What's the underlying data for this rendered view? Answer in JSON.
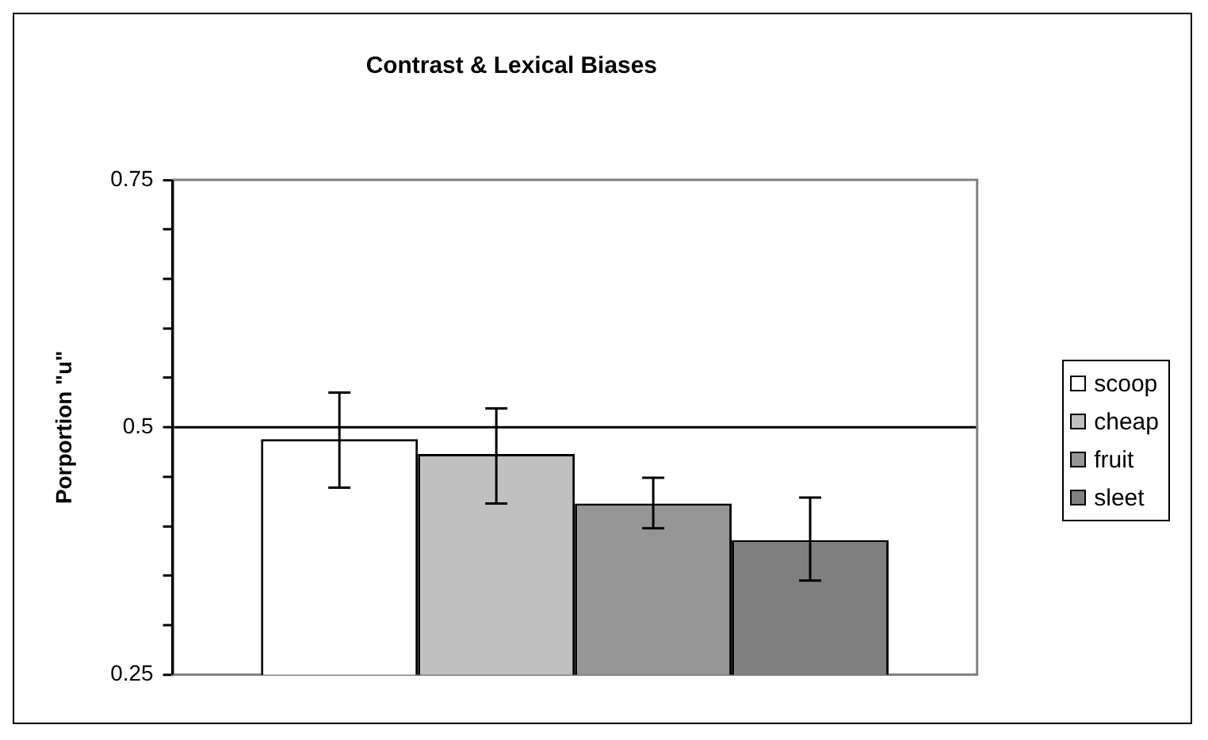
{
  "chart_data": {
    "type": "bar",
    "title": "Contrast & Lexical Biases",
    "ylabel": "Porportion \"u\"",
    "categories": [
      null
    ],
    "series": [
      {
        "name": "scoop",
        "color": "#ffffff",
        "values": [
          0.488
        ],
        "errors": [
          [
            0.439,
            0.535
          ]
        ]
      },
      {
        "name": "cheap",
        "color": "#c0c0c0",
        "values": [
          0.473
        ],
        "errors": [
          [
            0.423,
            0.519
          ]
        ]
      },
      {
        "name": "fruit",
        "color": "#969696",
        "values": [
          0.423
        ],
        "errors": [
          [
            0.398,
            0.449
          ]
        ]
      },
      {
        "name": "sleet",
        "color": "#808080",
        "values": [
          0.386
        ],
        "errors": [
          [
            0.345,
            0.429
          ]
        ]
      }
    ],
    "ylim": [
      0.25,
      0.75
    ],
    "yticks": [
      0.25,
      {
        "value": 0.3,
        "label": null
      },
      {
        "value": 0.35,
        "label": null
      },
      {
        "value": 0.4,
        "label": null
      },
      {
        "value": 0.45,
        "label": null
      },
      0.5,
      {
        "value": 0.55,
        "label": null
      },
      {
        "value": 0.6,
        "label": null
      },
      {
        "value": 0.65,
        "label": null
      },
      {
        "value": 0.7,
        "label": null
      },
      0.75
    ],
    "grid": "y",
    "legend": "right"
  }
}
